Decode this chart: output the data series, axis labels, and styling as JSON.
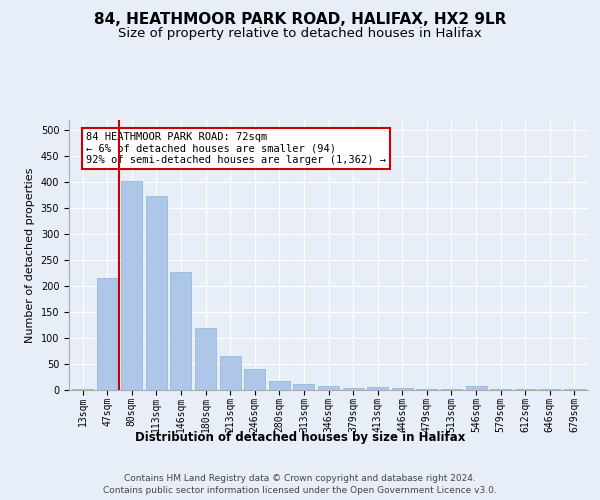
{
  "title": "84, HEATHMOOR PARK ROAD, HALIFAX, HX2 9LR",
  "subtitle": "Size of property relative to detached houses in Halifax",
  "xlabel": "Distribution of detached houses by size in Halifax",
  "ylabel": "Number of detached properties",
  "categories": [
    "13sqm",
    "47sqm",
    "80sqm",
    "113sqm",
    "146sqm",
    "180sqm",
    "213sqm",
    "246sqm",
    "280sqm",
    "313sqm",
    "346sqm",
    "379sqm",
    "413sqm",
    "446sqm",
    "479sqm",
    "513sqm",
    "546sqm",
    "579sqm",
    "612sqm",
    "646sqm",
    "679sqm"
  ],
  "values": [
    2,
    215,
    403,
    373,
    227,
    120,
    65,
    40,
    17,
    12,
    8,
    4,
    5,
    3,
    1,
    1,
    7,
    1,
    1,
    1,
    2
  ],
  "bar_color": "#aec6e8",
  "bar_edge_color": "#8ab4d8",
  "property_line_color": "#cc0000",
  "annotation_text": "84 HEATHMOOR PARK ROAD: 72sqm\n← 6% of detached houses are smaller (94)\n92% of semi-detached houses are larger (1,362) →",
  "annotation_box_color": "#ffffff",
  "annotation_box_edge_color": "#cc0000",
  "ylim": [
    0,
    520
  ],
  "yticks": [
    0,
    50,
    100,
    150,
    200,
    250,
    300,
    350,
    400,
    450,
    500
  ],
  "background_color": "#e8eef8",
  "footer_line1": "Contains HM Land Registry data © Crown copyright and database right 2024.",
  "footer_line2": "Contains public sector information licensed under the Open Government Licence v3.0.",
  "title_fontsize": 11,
  "subtitle_fontsize": 9.5,
  "annotation_fontsize": 7.5,
  "ylabel_fontsize": 8,
  "xlabel_fontsize": 8.5,
  "tick_fontsize": 7,
  "footer_fontsize": 6.5
}
